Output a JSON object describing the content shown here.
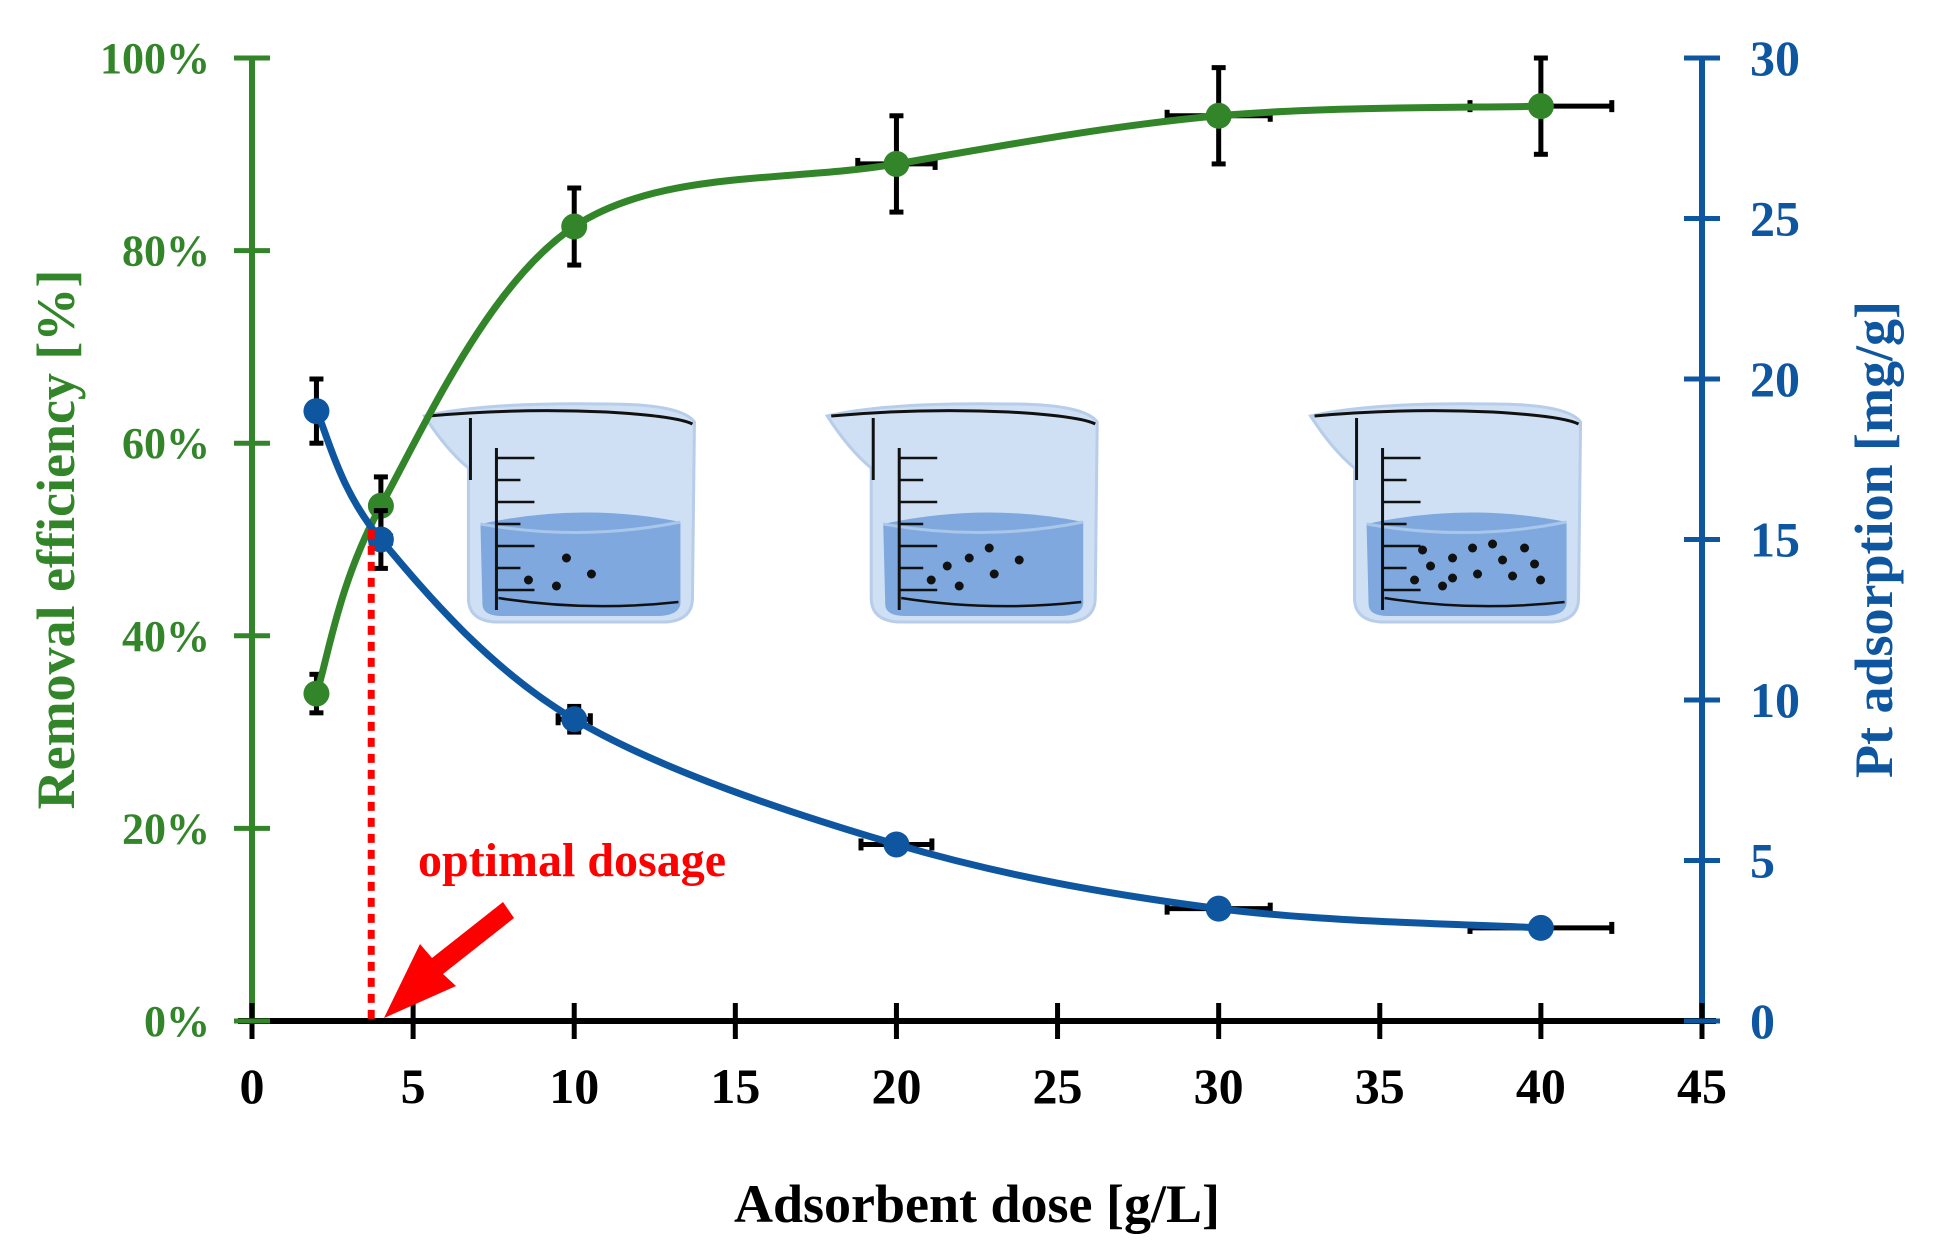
{
  "chart_data": {
    "type": "line",
    "xlabel": "Adsorbent dose [g/L]",
    "ylabel_left": "Removal efficiency [%]",
    "ylabel_right": "Pt adsorption [mg/g]",
    "xlim": [
      0,
      45
    ],
    "xticks": [
      0,
      5,
      10,
      15,
      20,
      25,
      30,
      35,
      40,
      45
    ],
    "ylim_left": [
      0,
      100
    ],
    "yticks_left": [
      "0%",
      "20%",
      "40%",
      "60%",
      "80%",
      "100%"
    ],
    "ylim_right": [
      0,
      30
    ],
    "yticks_right": [
      0,
      5,
      10,
      15,
      20,
      25,
      30
    ],
    "grid": false,
    "series": [
      {
        "axis": "left",
        "color": "#33852a",
        "x": [
          2,
          4,
          10,
          20,
          30,
          40
        ],
        "y": [
          34,
          53.5,
          82.5,
          89,
          94,
          95
        ],
        "yerr": [
          2,
          3,
          4,
          5,
          5,
          5
        ],
        "xerr": [
          0,
          0,
          0,
          1.2,
          1.6,
          2.2
        ]
      },
      {
        "axis": "right",
        "color": "#0f56a0",
        "x": [
          2,
          4,
          10,
          20,
          30,
          40
        ],
        "y": [
          19,
          15,
          9.4,
          5.5,
          3.5,
          2.9
        ],
        "yerr": [
          1,
          0.9,
          0.4,
          0.2,
          0.1,
          0.1
        ],
        "xerr": [
          0,
          0.3,
          0.5,
          1.1,
          1.6,
          2.2
        ]
      }
    ],
    "annotation": {
      "text": "optimal dosage",
      "x": 3.7,
      "color": "#ff0000"
    },
    "beakers": [
      {
        "center_x": 11,
        "particles": 4
      },
      {
        "center_x": 23.5,
        "particles": 7
      },
      {
        "center_x": 38.5,
        "particles": 14
      }
    ]
  }
}
